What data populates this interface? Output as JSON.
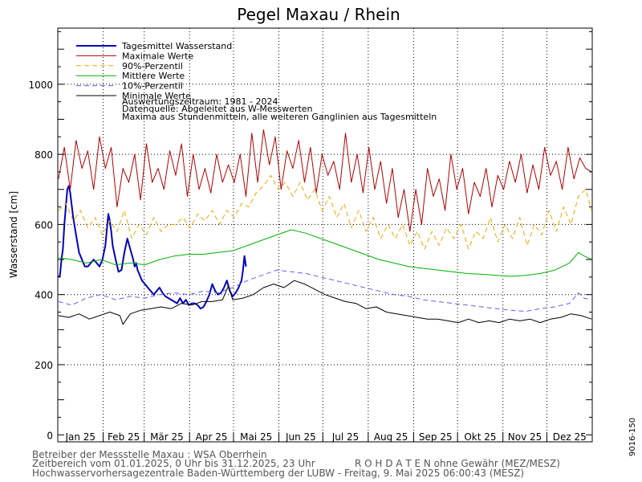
{
  "chart_data": {
    "type": "line",
    "title": "Pegel Maxau / Rhein",
    "ylabel": "Wasserstand [cm]",
    "xlabel": "",
    "ylim": [
      -20,
      1160
    ],
    "yticks": [
      0,
      200,
      400,
      600,
      800,
      1000
    ],
    "grid": true,
    "legend_position": "top-left",
    "months": [
      "Jan 25",
      "Feb 25",
      "Mär 25",
      "Apr 25",
      "Mai 25",
      "Jun 25",
      "Jul 25",
      "Aug 25",
      "Sep 25",
      "Okt 25",
      "Nov 25",
      "Dez 25"
    ],
    "series": [
      {
        "name": "Tagesmittel Wasserstand",
        "color": "#0000c0",
        "style": "solid",
        "width": 2,
        "x": [
          1,
          2,
          3,
          4,
          5,
          6,
          7,
          8,
          9,
          11,
          13,
          15,
          17,
          19,
          21,
          23,
          25,
          27,
          29,
          31,
          33,
          35,
          36,
          37,
          38,
          40,
          42,
          44,
          46,
          48,
          50,
          52,
          53,
          54,
          55,
          56,
          58,
          60,
          62,
          64,
          66,
          68,
          70,
          72,
          74,
          76,
          78,
          80,
          82,
          84,
          86,
          88,
          90,
          92,
          94,
          96,
          98,
          100,
          102,
          104,
          106,
          108,
          110,
          112,
          114,
          116,
          118,
          120,
          122,
          124,
          126,
          127,
          128,
          129
        ],
        "values": [
          450,
          455,
          500,
          530,
          600,
          650,
          700,
          710,
          690,
          620,
          570,
          520,
          500,
          480,
          480,
          490,
          500,
          490,
          480,
          500,
          540,
          630,
          610,
          580,
          540,
          500,
          465,
          470,
          520,
          560,
          530,
          500,
          480,
          490,
          470,
          460,
          440,
          430,
          420,
          410,
          400,
          410,
          420,
          405,
          395,
          390,
          385,
          380,
          375,
          390,
          375,
          385,
          370,
          375,
          375,
          370,
          360,
          365,
          380,
          400,
          430,
          410,
          400,
          405,
          420,
          440,
          410,
          395,
          405,
          420,
          440,
          470,
          510,
          480
        ]
      },
      {
        "name": "Maximale Werte",
        "color": "#b00000",
        "style": "solid",
        "width": 1,
        "x": [
          1,
          5,
          9,
          13,
          17,
          21,
          25,
          29,
          33,
          37,
          41,
          45,
          49,
          53,
          57,
          61,
          65,
          69,
          73,
          77,
          81,
          85,
          89,
          93,
          97,
          101,
          105,
          109,
          113,
          117,
          121,
          125,
          129,
          133,
          137,
          141,
          145,
          149,
          153,
          157,
          161,
          165,
          169,
          173,
          177,
          181,
          185,
          189,
          193,
          197,
          201,
          205,
          209,
          213,
          217,
          221,
          225,
          229,
          233,
          237,
          241,
          245,
          249,
          253,
          257,
          261,
          265,
          269,
          273,
          277,
          281,
          285,
          289,
          293,
          297,
          301,
          305,
          309,
          313,
          317,
          321,
          325,
          329,
          333,
          337,
          341,
          345,
          349,
          353,
          357,
          361,
          365
        ],
        "values": [
          730,
          820,
          700,
          840,
          760,
          810,
          700,
          850,
          760,
          820,
          650,
          760,
          720,
          800,
          670,
          830,
          720,
          760,
          700,
          810,
          740,
          830,
          680,
          800,
          700,
          760,
          690,
          800,
          720,
          770,
          720,
          800,
          680,
          860,
          720,
          870,
          770,
          850,
          700,
          810,
          760,
          840,
          720,
          820,
          690,
          800,
          740,
          780,
          700,
          860,
          720,
          800,
          690,
          820,
          700,
          780,
          660,
          760,
          620,
          700,
          580,
          700,
          600,
          760,
          680,
          730,
          640,
          800,
          700,
          760,
          630,
          720,
          680,
          760,
          650,
          740,
          700,
          780,
          720,
          800,
          690,
          770,
          700,
          820,
          740,
          780,
          700,
          820,
          730,
          790,
          760,
          750
        ]
      },
      {
        "name": "90%-Perzentil",
        "color": "#f0a800",
        "style": "dashed",
        "width": 1,
        "x": [
          1,
          6,
          11,
          16,
          21,
          26,
          31,
          36,
          41,
          46,
          51,
          56,
          61,
          66,
          71,
          76,
          81,
          86,
          91,
          96,
          101,
          106,
          111,
          116,
          121,
          126,
          131,
          136,
          141,
          146,
          151,
          156,
          161,
          166,
          171,
          176,
          181,
          186,
          191,
          196,
          201,
          206,
          211,
          216,
          221,
          226,
          231,
          236,
          241,
          246,
          251,
          256,
          261,
          266,
          271,
          276,
          281,
          286,
          291,
          296,
          301,
          306,
          311,
          316,
          321,
          326,
          331,
          336,
          341,
          346,
          351,
          356,
          361,
          365
        ],
        "values": [
          640,
          660,
          610,
          640,
          590,
          620,
          570,
          610,
          580,
          640,
          560,
          600,
          570,
          620,
          580,
          600,
          600,
          620,
          590,
          630,
          610,
          640,
          600,
          640,
          620,
          660,
          650,
          690,
          710,
          740,
          700,
          720,
          680,
          720,
          670,
          700,
          640,
          680,
          620,
          660,
          590,
          640,
          580,
          620,
          560,
          600,
          560,
          600,
          540,
          580,
          530,
          580,
          540,
          590,
          560,
          600,
          530,
          580,
          560,
          620,
          550,
          600,
          560,
          620,
          540,
          600,
          570,
          640,
          580,
          650,
          600,
          680,
          700,
          640
        ]
      },
      {
        "name": "Mittlere Werte",
        "color": "#00b000",
        "style": "solid",
        "width": 1,
        "x": [
          1,
          10,
          20,
          30,
          40,
          50,
          60,
          70,
          80,
          90,
          100,
          110,
          120,
          130,
          140,
          150,
          160,
          170,
          180,
          190,
          200,
          210,
          220,
          230,
          240,
          250,
          260,
          270,
          280,
          290,
          300,
          310,
          320,
          330,
          340,
          350,
          356,
          360,
          365
        ],
        "values": [
          505,
          500,
          490,
          500,
          485,
          490,
          485,
          500,
          510,
          515,
          515,
          520,
          525,
          540,
          555,
          570,
          585,
          575,
          560,
          545,
          530,
          515,
          500,
          490,
          480,
          475,
          470,
          465,
          460,
          458,
          455,
          452,
          455,
          460,
          470,
          490,
          520,
          510,
          500
        ]
      },
      {
        "name": "10%-Perzentil",
        "color": "#6060f0",
        "style": "dashed",
        "width": 1,
        "x": [
          1,
          10,
          20,
          30,
          40,
          50,
          60,
          70,
          80,
          90,
          100,
          110,
          120,
          130,
          140,
          150,
          160,
          170,
          180,
          190,
          200,
          210,
          220,
          230,
          240,
          250,
          260,
          270,
          280,
          290,
          300,
          310,
          320,
          330,
          340,
          350,
          356,
          360,
          365
        ],
        "values": [
          380,
          370,
          390,
          400,
          385,
          395,
          390,
          400,
          405,
          400,
          410,
          405,
          420,
          440,
          455,
          470,
          465,
          460,
          450,
          440,
          430,
          420,
          410,
          400,
          395,
          385,
          380,
          375,
          370,
          365,
          360,
          355,
          352,
          360,
          365,
          375,
          405,
          390,
          385
        ]
      },
      {
        "name": "Minimale Werte",
        "color": "#000000",
        "style": "solid",
        "width": 1,
        "x": [
          1,
          8,
          15,
          22,
          29,
          36,
          43,
          45,
          50,
          57,
          64,
          71,
          78,
          85,
          92,
          99,
          106,
          113,
          117,
          120,
          127,
          134,
          141,
          148,
          155,
          162,
          169,
          176,
          183,
          190,
          197,
          204,
          211,
          218,
          225,
          232,
          239,
          246,
          253,
          260,
          267,
          274,
          281,
          288,
          295,
          302,
          309,
          316,
          323,
          330,
          337,
          344,
          351,
          358,
          365
        ],
        "values": [
          340,
          335,
          345,
          330,
          340,
          350,
          340,
          315,
          345,
          355,
          360,
          365,
          360,
          375,
          370,
          380,
          380,
          385,
          425,
          385,
          390,
          400,
          420,
          430,
          420,
          440,
          430,
          415,
          400,
          390,
          380,
          375,
          360,
          365,
          350,
          345,
          340,
          335,
          330,
          330,
          325,
          320,
          330,
          320,
          325,
          320,
          330,
          325,
          330,
          320,
          330,
          335,
          345,
          340,
          330
        ]
      }
    ],
    "annotations": {
      "period": "Auswertungszeitraum: 1981 - 2024",
      "source": "Datenquelle: Abgeleitet aus W-Messwerten",
      "note": "Maxima aus Stundenmitteln, alle weiteren Ganglinien aus Tagesmitteln"
    }
  },
  "footer": {
    "line1": "Betreiber der Messstelle Maxau : WSA Oberrhein",
    "line2a": "Zeitbereich vom 01.01.2025, 0 Uhr bis 31.12.2025, 23 Uhr",
    "line2b": "R O H D A T E N ohne Gewähr (MEZ/MESZ)",
    "line3": "Hochwasservorhersagezentrale Baden-Württemberg der LUBW - Freitag, 9. Mai 2025 06:00:43 (MESZ)"
  },
  "side_label": "9016-150"
}
